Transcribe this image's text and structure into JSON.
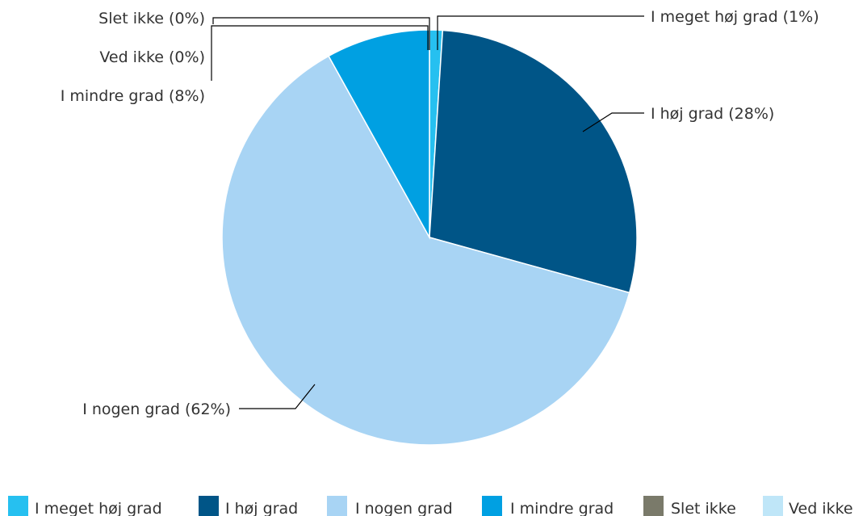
{
  "chart_data": {
    "type": "pie",
    "title": "",
    "slices": [
      {
        "name": "I meget høj grad",
        "value": 1,
        "label": "I meget høj grad (1%)",
        "color": "#26C0F0"
      },
      {
        "name": "I høj grad",
        "value": 28,
        "label": "I høj grad (28%)",
        "color": "#005587"
      },
      {
        "name": "I nogen grad",
        "value": 62,
        "label": "I nogen grad (62%)",
        "color": "#A8D4F4"
      },
      {
        "name": "I mindre grad",
        "value": 8,
        "label": "I mindre grad (8%)",
        "color": "#00A0E2"
      },
      {
        "name": "Slet ikke",
        "value": 0,
        "label": "Slet ikke (0%)",
        "color": "#7A7A6A"
      },
      {
        "name": "Ved ikke",
        "value": 0,
        "label": "Ved ikke (0%)",
        "color": "#BFE6F8"
      }
    ],
    "legend": {
      "position": "bottom"
    }
  }
}
